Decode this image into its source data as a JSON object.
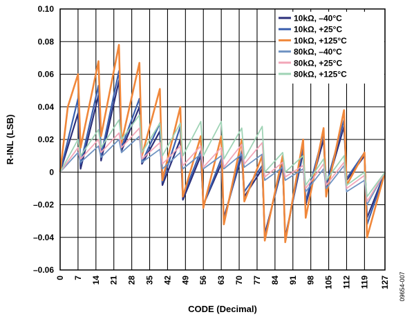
{
  "chart_data": {
    "type": "line",
    "xlabel": "CODE (Decimal)",
    "ylabel": "R-INL (LSB)",
    "xlim": [
      0,
      127
    ],
    "ylim": [
      -0.06,
      0.1
    ],
    "x_ticks": [
      "0",
      "7",
      "14",
      "21",
      "28",
      "35",
      "42",
      "49",
      "56",
      "63",
      "70",
      "77",
      "84",
      "91",
      "98",
      "105",
      "112",
      "119",
      "127"
    ],
    "x_tick_values": [
      0,
      7,
      14,
      21,
      28,
      35,
      42,
      49,
      56,
      63,
      70,
      77,
      84,
      91,
      98,
      105,
      112,
      119,
      127
    ],
    "y_ticks": [
      "0.10",
      "0.08",
      "0.06",
      "0.04",
      "0.02",
      "0",
      "–0.02",
      "–0.04",
      "–0.06"
    ],
    "y_tick_values": [
      0.1,
      0.08,
      0.06,
      0.04,
      0.02,
      0,
      -0.02,
      -0.04,
      -0.06
    ],
    "grid": true,
    "legend_position": "top-right",
    "figure_id": "09654-007",
    "series": [
      {
        "name": "10kΩ, –40°C",
        "color": "#2b2f7a",
        "width": 2.2,
        "points": [
          [
            0,
            0
          ],
          [
            7,
            0.036
          ],
          [
            8,
            0.002
          ],
          [
            15,
            0.047
          ],
          [
            16,
            0.007
          ],
          [
            23,
            0.056
          ],
          [
            24,
            0.013
          ],
          [
            31,
            0.04
          ],
          [
            32,
            0.005
          ],
          [
            39,
            0.025
          ],
          [
            40,
            -0.008
          ],
          [
            47,
            0.02
          ],
          [
            48,
            -0.017
          ],
          [
            55,
            0.01
          ],
          [
            56,
            -0.02
          ],
          [
            63,
            0.005
          ],
          [
            64,
            -0.028
          ],
          [
            71,
            0.01
          ],
          [
            72,
            -0.015
          ],
          [
            79,
            0.002
          ],
          [
            80,
            -0.038
          ],
          [
            87,
            0.004
          ],
          [
            88,
            -0.04
          ],
          [
            95,
            0.012
          ],
          [
            96,
            -0.02
          ],
          [
            103,
            0.02
          ],
          [
            104,
            -0.01
          ],
          [
            111,
            0.028
          ],
          [
            112,
            -0.005
          ],
          [
            119,
            0.01
          ],
          [
            120,
            -0.028
          ],
          [
            127,
            0
          ]
        ]
      },
      {
        "name": "10kΩ, +25°C",
        "color": "#3a5fae",
        "width": 2.2,
        "points": [
          [
            0,
            0
          ],
          [
            7,
            0.045
          ],
          [
            8,
            0.005
          ],
          [
            15,
            0.053
          ],
          [
            16,
            0.01
          ],
          [
            23,
            0.062
          ],
          [
            24,
            0.015
          ],
          [
            31,
            0.045
          ],
          [
            32,
            0.006
          ],
          [
            39,
            0.03
          ],
          [
            40,
            -0.006
          ],
          [
            47,
            0.028
          ],
          [
            48,
            -0.015
          ],
          [
            55,
            0.013
          ],
          [
            56,
            -0.02
          ],
          [
            63,
            0.008
          ],
          [
            64,
            -0.03
          ],
          [
            71,
            0.013
          ],
          [
            72,
            -0.012
          ],
          [
            79,
            0.004
          ],
          [
            80,
            -0.04
          ],
          [
            87,
            0.006
          ],
          [
            88,
            -0.042
          ],
          [
            95,
            0.015
          ],
          [
            96,
            -0.018
          ],
          [
            103,
            0.024
          ],
          [
            104,
            -0.008
          ],
          [
            111,
            0.032
          ],
          [
            112,
            -0.004
          ],
          [
            119,
            0.012
          ],
          [
            120,
            -0.032
          ],
          [
            127,
            0
          ]
        ]
      },
      {
        "name": "10kΩ, +125°C",
        "color": "#f0873a",
        "width": 2.6,
        "points": [
          [
            0,
            0
          ],
          [
            3,
            0.04
          ],
          [
            7,
            0.06
          ],
          [
            8,
            0.015
          ],
          [
            15,
            0.068
          ],
          [
            16,
            0.022
          ],
          [
            23,
            0.078
          ],
          [
            24,
            0.018
          ],
          [
            31,
            0.067
          ],
          [
            32,
            0.01
          ],
          [
            39,
            0.051
          ],
          [
            40,
            -0.005
          ],
          [
            47,
            0.04
          ],
          [
            48,
            -0.015
          ],
          [
            55,
            0.022
          ],
          [
            56,
            -0.022
          ],
          [
            63,
            0.022
          ],
          [
            64,
            -0.032
          ],
          [
            71,
            0.02
          ],
          [
            72,
            -0.018
          ],
          [
            79,
            0.01
          ],
          [
            80,
            -0.042
          ],
          [
            87,
            0.01
          ],
          [
            88,
            -0.043
          ],
          [
            95,
            0.02
          ],
          [
            96,
            -0.028
          ],
          [
            103,
            0.027
          ],
          [
            104,
            -0.015
          ],
          [
            111,
            0.038
          ],
          [
            112,
            -0.008
          ],
          [
            119,
            0.012
          ],
          [
            120,
            -0.04
          ],
          [
            127,
            0
          ]
        ]
      },
      {
        "name": "80kΩ, –40°C",
        "color": "#6f93c2",
        "width": 1.8,
        "points": [
          [
            0,
            0
          ],
          [
            7,
            0.012
          ],
          [
            8,
            0.006
          ],
          [
            15,
            0.016
          ],
          [
            16,
            0.009
          ],
          [
            23,
            0.02
          ],
          [
            24,
            0.012
          ],
          [
            31,
            0.022
          ],
          [
            32,
            0.006
          ],
          [
            39,
            0.014
          ],
          [
            40,
            0.002
          ],
          [
            47,
            0.012
          ],
          [
            48,
            0.002
          ],
          [
            55,
            0.011
          ],
          [
            56,
            0.002
          ],
          [
            63,
            0.01
          ],
          [
            64,
            0.002
          ],
          [
            71,
            0.011
          ],
          [
            72,
            0.003
          ],
          [
            79,
            0.011
          ],
          [
            80,
            -0.005
          ],
          [
            87,
            0.003
          ],
          [
            88,
            -0.005
          ],
          [
            95,
            0.002
          ],
          [
            96,
            -0.012
          ],
          [
            103,
            0.002
          ],
          [
            104,
            -0.01
          ],
          [
            111,
            0.004
          ],
          [
            112,
            -0.012
          ],
          [
            119,
            -0.005
          ],
          [
            120,
            -0.02
          ],
          [
            127,
            0
          ]
        ]
      },
      {
        "name": "80kΩ, +25°C",
        "color": "#f2a6b8",
        "width": 1.8,
        "points": [
          [
            0,
            0
          ],
          [
            7,
            0.015
          ],
          [
            8,
            0.008
          ],
          [
            15,
            0.02
          ],
          [
            16,
            0.012
          ],
          [
            23,
            0.024
          ],
          [
            24,
            0.015
          ],
          [
            31,
            0.027
          ],
          [
            32,
            0.008
          ],
          [
            39,
            0.018
          ],
          [
            40,
            0.005
          ],
          [
            47,
            0.016
          ],
          [
            48,
            0.004
          ],
          [
            55,
            0.016
          ],
          [
            56,
            0.003
          ],
          [
            63,
            0.015
          ],
          [
            64,
            0.003
          ],
          [
            71,
            0.017
          ],
          [
            72,
            0.005
          ],
          [
            79,
            0.018
          ],
          [
            80,
            -0.003
          ],
          [
            87,
            0.006
          ],
          [
            88,
            -0.003
          ],
          [
            95,
            0.004
          ],
          [
            96,
            -0.01
          ],
          [
            103,
            0.005
          ],
          [
            104,
            -0.008
          ],
          [
            111,
            0.006
          ],
          [
            112,
            -0.01
          ],
          [
            119,
            -0.002
          ],
          [
            120,
            -0.018
          ],
          [
            127,
            0
          ]
        ]
      },
      {
        "name": "80kΩ, +125°C",
        "color": "#9fd3b5",
        "width": 1.8,
        "points": [
          [
            0,
            0
          ],
          [
            7,
            0.02
          ],
          [
            8,
            0.01
          ],
          [
            15,
            0.026
          ],
          [
            16,
            0.015
          ],
          [
            23,
            0.032
          ],
          [
            24,
            0.02
          ],
          [
            31,
            0.035
          ],
          [
            32,
            0.012
          ],
          [
            39,
            0.03
          ],
          [
            40,
            0.01
          ],
          [
            47,
            0.03
          ],
          [
            48,
            0.01
          ],
          [
            55,
            0.031
          ],
          [
            56,
            0.01
          ],
          [
            63,
            0.031
          ],
          [
            64,
            0.008
          ],
          [
            71,
            0.027
          ],
          [
            72,
            0.008
          ],
          [
            79,
            0.028
          ],
          [
            80,
            0.0
          ],
          [
            87,
            0.012
          ],
          [
            88,
            0.0
          ],
          [
            95,
            0.01
          ],
          [
            96,
            -0.008
          ],
          [
            103,
            0.008
          ],
          [
            104,
            -0.005
          ],
          [
            111,
            0.01
          ],
          [
            112,
            -0.008
          ],
          [
            119,
            0.0
          ],
          [
            120,
            -0.015
          ],
          [
            127,
            0
          ]
        ]
      }
    ]
  }
}
